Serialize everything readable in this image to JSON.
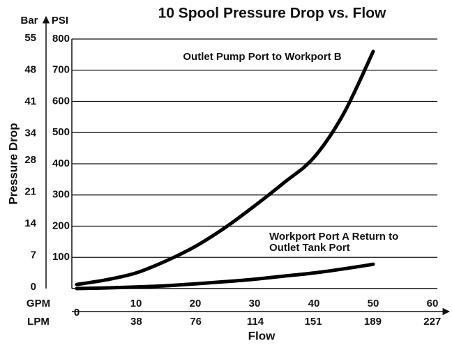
{
  "chart_data": {
    "type": "line",
    "title": "10 Spool Pressure Drop vs. Flow",
    "y_axis_label": "Pressure Drop",
    "y_units": "PSI",
    "y2_units": "Bar",
    "x_axis_label": "Flow",
    "x_units": "GPM",
    "x2_units": "LPM",
    "x": [
      0,
      5,
      10,
      15,
      20,
      25,
      30,
      35,
      40,
      45,
      50
    ],
    "series": [
      {
        "color": "#000000",
        "label_lines": [
          "Outlet Pump Port to Workport B"
        ],
        "values": [
          13,
          28,
          50,
          88,
          135,
          195,
          265,
          340,
          420,
          560,
          760
        ]
      },
      {
        "color": "#000000",
        "label_lines": [
          "Workport Port A Return to",
          "Outlet Tank Port"
        ],
        "values": [
          0,
          2,
          5,
          9,
          15,
          22,
          30,
          40,
          50,
          63,
          78
        ]
      }
    ],
    "xlim": [
      0,
      60
    ],
    "xticks": [
      0,
      10,
      20,
      30,
      40,
      50,
      60
    ],
    "x2lim": [
      0,
      227.1
    ],
    "x2ticks": [
      38,
      76,
      114,
      151,
      189,
      227
    ],
    "ylim": [
      0,
      800
    ],
    "yticks": [
      100,
      200,
      300,
      400,
      500,
      600,
      700,
      800
    ],
    "y2lim": [
      0,
      55.16
    ],
    "y2ticks": [
      0,
      7,
      14,
      21,
      28,
      34,
      41,
      48,
      55
    ],
    "grid": true
  }
}
